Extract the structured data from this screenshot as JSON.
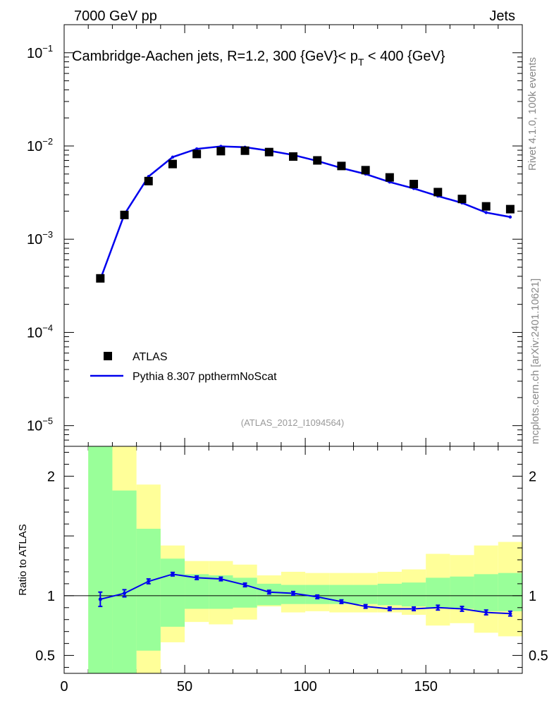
{
  "header": {
    "left": "7000 GeV pp",
    "right": "Jets"
  },
  "side_labels": {
    "rivet": "Rivet 4.1.0,  100k events",
    "mcplots": "mcplots.cern.ch [arXiv:2401.10621]"
  },
  "colors": {
    "mc": "#0000ee",
    "data": "#000000",
    "band_inner": "#99ff99",
    "band_outer": "#ffff99",
    "watermark": "#999999",
    "side_text": "#888888"
  },
  "chart_data": {
    "type": "scatter",
    "title": {
      "prefix": "Cambridge-Aachen jets, R=1.2, 300 {GeV}< p",
      "sub": "T",
      "suffix": " < 400 {GeV}"
    },
    "watermark": "(ATLAS_2012_I1094564)",
    "xlim": [
      0,
      190
    ],
    "x_ticks": [
      0,
      50,
      100,
      150
    ],
    "main": {
      "yscale": "log",
      "ylim": [
        6e-06,
        0.2
      ],
      "y_ticks": [
        {
          "exp": -5,
          "base": "10",
          "sup": "−5"
        },
        {
          "exp": -4,
          "base": "10",
          "sup": "−4"
        },
        {
          "exp": -3,
          "base": "10",
          "sup": "−3"
        },
        {
          "exp": -2,
          "base": "10",
          "sup": "−2"
        },
        {
          "exp": -1,
          "base": "10",
          "sup": "−1"
        }
      ]
    },
    "ratio": {
      "ylabel": "Ratio to ATLAS",
      "ylim": [
        0.35,
        2.25
      ],
      "y_ticks": [
        {
          "v": 0.5,
          "label": "0.5"
        },
        {
          "v": 1,
          "label": "1"
        },
        {
          "v": 2,
          "label": "2"
        }
      ],
      "green_band": [
        {
          "x0": 10,
          "x1": 20,
          "lo": 0.3,
          "hi": 2.3
        },
        {
          "x0": 20,
          "x1": 30,
          "lo": 0.3,
          "hi": 1.88
        },
        {
          "x0": 30,
          "x1": 40,
          "lo": 0.54,
          "hi": 1.56
        },
        {
          "x0": 40,
          "x1": 50,
          "lo": 0.74,
          "hi": 1.31
        },
        {
          "x0": 50,
          "x1": 60,
          "lo": 0.89,
          "hi": 1.18
        },
        {
          "x0": 60,
          "x1": 70,
          "lo": 0.89,
          "hi": 1.17
        },
        {
          "x0": 70,
          "x1": 80,
          "lo": 0.9,
          "hi": 1.15
        },
        {
          "x0": 80,
          "x1": 90,
          "lo": 0.92,
          "hi": 1.1
        },
        {
          "x0": 90,
          "x1": 100,
          "lo": 0.93,
          "hi": 1.09
        },
        {
          "x0": 100,
          "x1": 110,
          "lo": 0.93,
          "hi": 1.09
        },
        {
          "x0": 110,
          "x1": 120,
          "lo": 0.93,
          "hi": 1.09
        },
        {
          "x0": 120,
          "x1": 130,
          "lo": 0.93,
          "hi": 1.09
        },
        {
          "x0": 130,
          "x1": 140,
          "lo": 0.92,
          "hi": 1.1
        },
        {
          "x0": 140,
          "x1": 150,
          "lo": 0.91,
          "hi": 1.11
        },
        {
          "x0": 150,
          "x1": 160,
          "lo": 0.9,
          "hi": 1.15
        },
        {
          "x0": 160,
          "x1": 170,
          "lo": 0.89,
          "hi": 1.16
        },
        {
          "x0": 170,
          "x1": 180,
          "lo": 0.87,
          "hi": 1.18
        },
        {
          "x0": 180,
          "x1": 190,
          "lo": 0.87,
          "hi": 1.19
        }
      ],
      "yellow_band": [
        {
          "x0": 10,
          "x1": 20,
          "lo": 0.3,
          "hi": 2.3
        },
        {
          "x0": 20,
          "x1": 30,
          "lo": 0.3,
          "hi": 2.3
        },
        {
          "x0": 30,
          "x1": 40,
          "lo": 0.3,
          "hi": 1.93
        },
        {
          "x0": 40,
          "x1": 50,
          "lo": 0.61,
          "hi": 1.42
        },
        {
          "x0": 50,
          "x1": 60,
          "lo": 0.78,
          "hi": 1.29
        },
        {
          "x0": 60,
          "x1": 70,
          "lo": 0.76,
          "hi": 1.29
        },
        {
          "x0": 70,
          "x1": 80,
          "lo": 0.8,
          "hi": 1.26
        },
        {
          "x0": 80,
          "x1": 90,
          "lo": 0.91,
          "hi": 1.17
        },
        {
          "x0": 90,
          "x1": 100,
          "lo": 0.86,
          "hi": 1.2
        },
        {
          "x0": 100,
          "x1": 110,
          "lo": 0.87,
          "hi": 1.19
        },
        {
          "x0": 110,
          "x1": 120,
          "lo": 0.86,
          "hi": 1.19
        },
        {
          "x0": 120,
          "x1": 130,
          "lo": 0.86,
          "hi": 1.19
        },
        {
          "x0": 130,
          "x1": 140,
          "lo": 0.86,
          "hi": 1.2
        },
        {
          "x0": 140,
          "x1": 150,
          "lo": 0.84,
          "hi": 1.22
        },
        {
          "x0": 150,
          "x1": 160,
          "lo": 0.75,
          "hi": 1.35
        },
        {
          "x0": 160,
          "x1": 170,
          "lo": 0.77,
          "hi": 1.34
        },
        {
          "x0": 170,
          "x1": 180,
          "lo": 0.69,
          "hi": 1.42
        },
        {
          "x0": 180,
          "x1": 190,
          "lo": 0.66,
          "hi": 1.45
        }
      ]
    },
    "series": [
      {
        "name": "ATLAS",
        "style": "markers",
        "x": [
          15,
          25,
          35,
          45,
          55,
          65,
          75,
          85,
          95,
          105,
          115,
          125,
          135,
          145,
          155,
          165,
          175,
          185
        ],
        "y": [
          0.00038,
          0.00182,
          0.0042,
          0.0064,
          0.0082,
          0.0088,
          0.0089,
          0.0086,
          0.0077,
          0.007,
          0.0061,
          0.0055,
          0.0046,
          0.0039,
          0.0032,
          0.0027,
          0.00225,
          0.0021
        ]
      },
      {
        "name": "Pythia 8.307 ppthermNoScat",
        "style": "line",
        "x": [
          15,
          25,
          35,
          45,
          55,
          65,
          75,
          85,
          95,
          105,
          115,
          125,
          135,
          145,
          155,
          165,
          175,
          185
        ],
        "y": [
          0.00037,
          0.00185,
          0.0047,
          0.0076,
          0.0093,
          0.0099,
          0.0097,
          0.0089,
          0.008,
          0.0069,
          0.0058,
          0.005,
          0.0041,
          0.0035,
          0.0029,
          0.00245,
          0.00193,
          0.00173
        ],
        "ratio": [
          0.97,
          1.02,
          1.12,
          1.18,
          1.15,
          1.14,
          1.09,
          1.03,
          1.02,
          0.99,
          0.95,
          0.91,
          0.89,
          0.89,
          0.9,
          0.89,
          0.86,
          0.85
        ],
        "ratio_err": [
          0.06,
          0.03,
          0.02,
          0.015,
          0.015,
          0.015,
          0.015,
          0.015,
          0.015,
          0.015,
          0.015,
          0.015,
          0.015,
          0.015,
          0.02,
          0.02,
          0.02,
          0.02
        ]
      }
    ]
  }
}
